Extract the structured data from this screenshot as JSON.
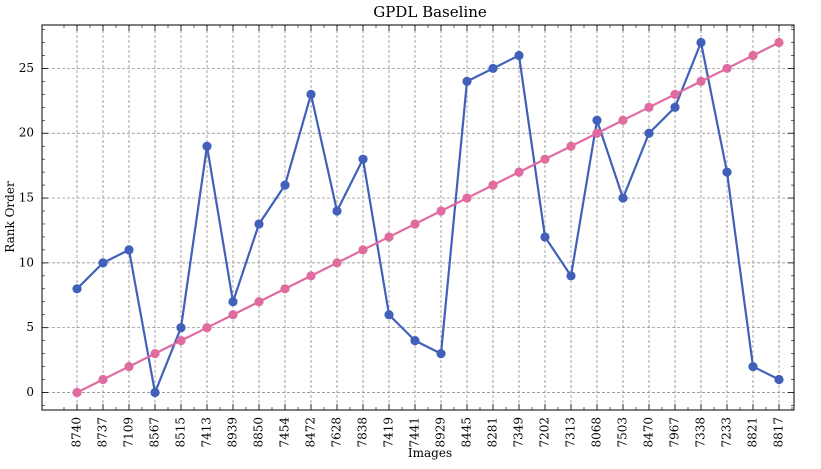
{
  "chart_data": {
    "type": "line",
    "title": "GPDL Baseline",
    "xlabel": "Images",
    "ylabel": "Rank Order",
    "categories": [
      "8740",
      "8737",
      "7109",
      "8567",
      "8515",
      "7413",
      "8939",
      "8850",
      "7454",
      "8472",
      "7628",
      "7838",
      "7419",
      "7441",
      "8929",
      "8445",
      "8281",
      "7349",
      "7202",
      "7313",
      "8068",
      "7503",
      "8470",
      "7967",
      "7338",
      "7233",
      "8821",
      "8817"
    ],
    "series": [
      {
        "color": "#4060BA",
        "values": [
          8,
          10,
          11,
          0,
          5,
          19,
          7,
          13,
          16,
          23,
          14,
          18,
          6,
          4,
          3,
          24,
          25,
          26,
          12,
          9,
          21,
          15,
          20,
          22,
          27,
          17,
          2,
          1
        ]
      },
      {
        "color": "#E06C9F",
        "values": [
          0,
          1,
          2,
          3,
          4,
          5,
          6,
          7,
          8,
          9,
          10,
          11,
          12,
          13,
          14,
          15,
          16,
          17,
          18,
          19,
          20,
          21,
          22,
          23,
          24,
          25,
          26,
          27
        ]
      }
    ],
    "ylim": [
      -1.35,
      28.35
    ],
    "yticks": [
      0,
      5,
      10,
      15,
      20,
      25
    ],
    "grid": true
  }
}
